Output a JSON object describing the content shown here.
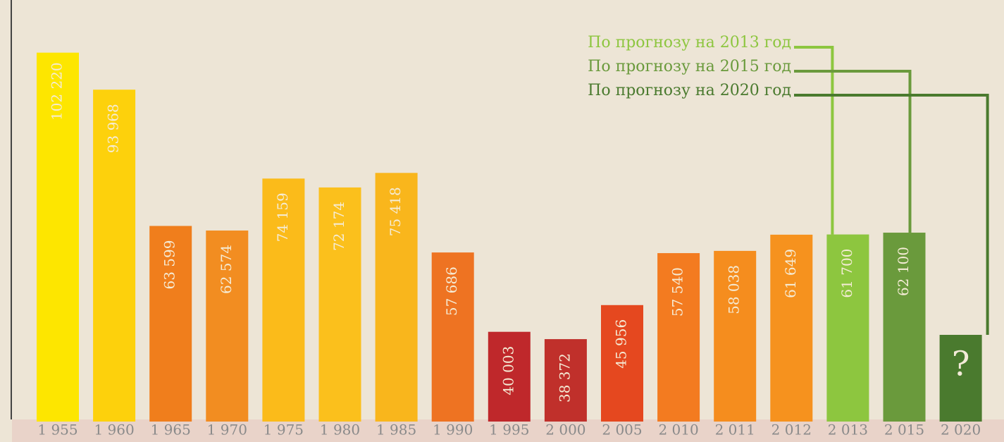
{
  "chart_data": {
    "type": "bar",
    "categories": [
      "1 955",
      "1 960",
      "1 965",
      "1 970",
      "1 975",
      "1 980",
      "1 985",
      "1 990",
      "1 995",
      "2 000",
      "2 005",
      "2 010",
      "2 011",
      "2 012",
      "2 013",
      "2 015",
      "2 020"
    ],
    "values": [
      102220,
      93968,
      63599,
      62574,
      74159,
      72174,
      75418,
      57686,
      40003,
      38372,
      45956,
      57540,
      58038,
      61649,
      61700,
      62100,
      null
    ],
    "value_labels": [
      "102 220",
      "93 968",
      "63 599",
      "62 574",
      "74 159",
      "72 174",
      "75 418",
      "57 686",
      "40 003",
      "38 372",
      "45 956",
      "57 540",
      "58 038",
      "61 649",
      "61 700",
      "62 100",
      "?"
    ],
    "colors": [
      "#fde600",
      "#fdd10c",
      "#f07e1c",
      "#f28d21",
      "#fbbb1a",
      "#fbc01c",
      "#f9b61c",
      "#ee7322",
      "#bf282b",
      "#c0302b",
      "#e5481f",
      "#f37b20",
      "#f58d1e",
      "#f6921e",
      "#8dc63f",
      "#6a9a3c",
      "#4a7a2e"
    ],
    "ylim": [
      20000,
      105000
    ],
    "annotations": [
      {
        "text": "По прогнозу на 2013 год",
        "color": "#8dc63f"
      },
      {
        "text": "По прогнозу на 2015 год",
        "color": "#6a9a3c"
      },
      {
        "text": "По прогнозу на 2020 год",
        "color": "#4a7a2e"
      }
    ]
  }
}
